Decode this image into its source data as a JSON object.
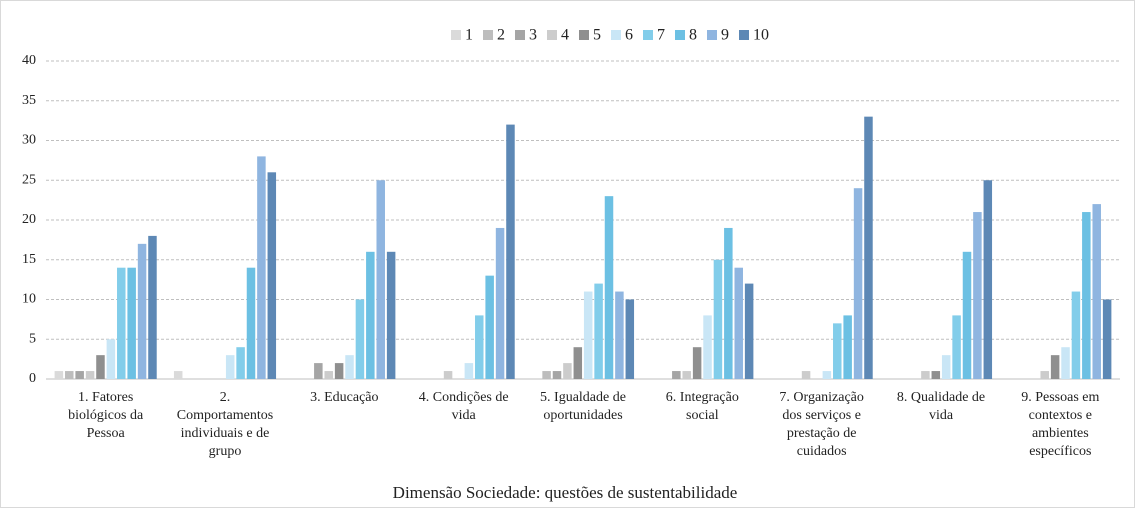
{
  "chart_data": {
    "type": "bar",
    "title": "Dimensão Sociedade: questões de sustentabilidade",
    "categories": [
      "1. Fatores biológicos da Pessoa",
      "2. Comportamentos individuais e de grupo",
      "3. Educação",
      "4. Condições de vida",
      "5. Igualdade de oportunidades",
      "6. Integração social",
      "7. Organização dos serviços e prestação de cuidados",
      "8. Qualidade de vida",
      "9. Pessoas em contextos e ambientes específicos"
    ],
    "series": [
      {
        "name": "1",
        "color": "#dadada",
        "values": [
          1,
          1,
          0,
          0,
          0,
          0,
          0,
          0,
          0
        ]
      },
      {
        "name": "2",
        "color": "#bdbdbd",
        "values": [
          1,
          0,
          0,
          0,
          1,
          0,
          0,
          0,
          0
        ]
      },
      {
        "name": "3",
        "color": "#a5a5a5",
        "values": [
          1,
          0,
          2,
          0,
          1,
          1,
          0,
          0,
          0
        ]
      },
      {
        "name": "4",
        "color": "#cccccc",
        "values": [
          1,
          0,
          1,
          1,
          2,
          1,
          1,
          1,
          1
        ]
      },
      {
        "name": "5",
        "color": "#8f8f8f",
        "values": [
          3,
          0,
          2,
          0,
          4,
          4,
          0,
          1,
          3
        ]
      },
      {
        "name": "6",
        "color": "#c9e6f6",
        "values": [
          5,
          3,
          3,
          2,
          11,
          8,
          1,
          3,
          4
        ]
      },
      {
        "name": "7",
        "color": "#82cdea",
        "values": [
          14,
          4,
          10,
          8,
          12,
          15,
          7,
          8,
          11
        ]
      },
      {
        "name": "8",
        "color": "#6cc0e3",
        "values": [
          14,
          14,
          16,
          13,
          23,
          19,
          8,
          16,
          21
        ]
      },
      {
        "name": "9",
        "color": "#8fb5e0",
        "values": [
          17,
          28,
          25,
          19,
          11,
          14,
          24,
          21,
          22
        ]
      },
      {
        "name": "10",
        "color": "#5d88b5",
        "values": [
          18,
          26,
          16,
          32,
          10,
          12,
          33,
          25,
          10
        ]
      }
    ],
    "ylim": [
      0,
      40
    ],
    "yticks": [
      0,
      5,
      10,
      15,
      20,
      25,
      30,
      35,
      40
    ],
    "grid": true,
    "legend": "top"
  }
}
